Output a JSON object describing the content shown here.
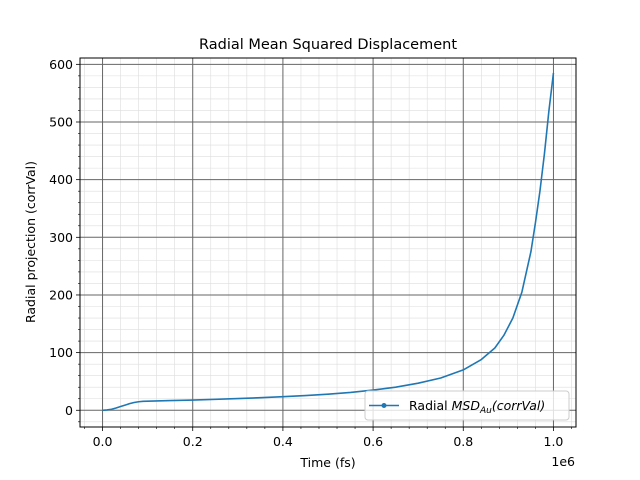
{
  "chart_data": {
    "type": "line",
    "title": "Radial Mean Squared Displacement",
    "xlabel": "Time (fs)",
    "ylabel": "Radial projection (corrVal)",
    "x_offset_label": "1e6",
    "xlim": [
      -50000,
      1050000
    ],
    "ylim": [
      -29,
      611
    ],
    "x_ticks": [
      0,
      200000,
      400000,
      600000,
      800000,
      1000000
    ],
    "x_tick_labels": [
      "0.0",
      "0.2",
      "0.4",
      "0.6",
      "0.8",
      "1.0"
    ],
    "y_ticks": [
      0,
      100,
      200,
      300,
      400,
      500,
      600
    ],
    "y_tick_labels": [
      "0",
      "100",
      "200",
      "300",
      "400",
      "500",
      "600"
    ],
    "grid": {
      "major": true,
      "minor": true
    },
    "legend": {
      "placement": "lower-right"
    },
    "series": [
      {
        "name": "Radial MSD_Au(corrVal)",
        "color": "#1f77b4",
        "marker": "dot",
        "x": [
          0,
          10000,
          20000,
          30000,
          40000,
          50000,
          60000,
          70000,
          80000,
          90000,
          100000,
          150000,
          200000,
          250000,
          300000,
          350000,
          400000,
          450000,
          500000,
          550000,
          600000,
          650000,
          700000,
          750000,
          800000,
          840000,
          870000,
          890000,
          910000,
          930000,
          950000,
          960000,
          970000,
          980000,
          990000,
          1000000
        ],
        "y": [
          0,
          0.6,
          1.8,
          4,
          6.5,
          9,
          11.5,
          13.5,
          14.8,
          15.5,
          15.8,
          16.8,
          17.8,
          19,
          20.3,
          21.8,
          23.5,
          25.5,
          28,
          31,
          35,
          40,
          47,
          56,
          70,
          88,
          108,
          130,
          160,
          205,
          275,
          325,
          380,
          445,
          520,
          585
        ]
      }
    ]
  },
  "legend_label": {
    "prefix": "Radial ",
    "msd": "MSD",
    "subscript": "Au",
    "suffix": "(corrVal)"
  }
}
